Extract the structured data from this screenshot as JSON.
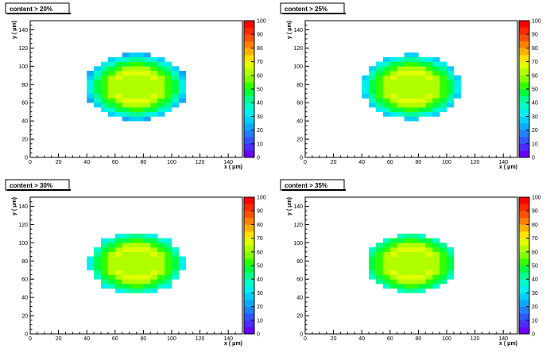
{
  "chart_data": [
    {
      "type": "heatmap",
      "title": "content > 20%",
      "xlabel": "x ( μm)",
      "ylabel": "y ( μm)",
      "xlim": [
        0,
        150
      ],
      "ylim": [
        0,
        150
      ],
      "x_ticks": [
        "0",
        "20",
        "40",
        "60",
        "80",
        "100",
        "120",
        "140"
      ],
      "y_ticks": [
        "0",
        "20",
        "40",
        "60",
        "80",
        "100",
        "120",
        "140"
      ],
      "z_range": [
        0,
        100
      ],
      "colorbar_ticks": [
        "0",
        "10",
        "20",
        "30",
        "40",
        "50",
        "60",
        "70",
        "80",
        "90",
        "100"
      ],
      "bin_size": 5,
      "ellipse": {
        "center_x": 75,
        "center_y": 77.5,
        "radius_x": 37.5,
        "radius_y": 37.5
      },
      "cutoff_percent": 20
    },
    {
      "type": "heatmap",
      "title": "content > 25%",
      "xlabel": "x ( μm)",
      "ylabel": "y ( μm)",
      "xlim": [
        0,
        150
      ],
      "ylim": [
        0,
        150
      ],
      "x_ticks": [
        "0",
        "20",
        "40",
        "60",
        "80",
        "100",
        "120",
        "140"
      ],
      "y_ticks": [
        "0",
        "20",
        "40",
        "60",
        "80",
        "100",
        "120",
        "140"
      ],
      "z_range": [
        0,
        100
      ],
      "colorbar_ticks": [
        "0",
        "10",
        "20",
        "30",
        "40",
        "50",
        "60",
        "70",
        "80",
        "90",
        "100"
      ],
      "bin_size": 5,
      "ellipse": {
        "center_x": 75,
        "center_y": 77.5,
        "radius_x": 37.5,
        "radius_y": 37.5
      },
      "cutoff_percent": 25
    },
    {
      "type": "heatmap",
      "title": "content > 30%",
      "xlabel": "x ( μm)",
      "ylabel": "y ( μm)",
      "xlim": [
        0,
        150
      ],
      "ylim": [
        0,
        150
      ],
      "x_ticks": [
        "0",
        "20",
        "40",
        "60",
        "80",
        "100",
        "120",
        "140"
      ],
      "y_ticks": [
        "0",
        "20",
        "40",
        "60",
        "80",
        "100",
        "120",
        "140"
      ],
      "z_range": [
        0,
        100
      ],
      "colorbar_ticks": [
        "0",
        "10",
        "20",
        "30",
        "40",
        "50",
        "60",
        "70",
        "80",
        "90",
        "100"
      ],
      "bin_size": 5,
      "ellipse": {
        "center_x": 75,
        "center_y": 77.5,
        "radius_x": 37.5,
        "radius_y": 37.5
      },
      "cutoff_percent": 30
    },
    {
      "type": "heatmap",
      "title": "content > 35%",
      "xlabel": "x ( μm)",
      "ylabel": "y ( μm)",
      "xlim": [
        0,
        150
      ],
      "ylim": [
        0,
        150
      ],
      "x_ticks": [
        "0",
        "20",
        "40",
        "60",
        "80",
        "100",
        "120",
        "140"
      ],
      "y_ticks": [
        "0",
        "20",
        "40",
        "60",
        "80",
        "100",
        "120",
        "140"
      ],
      "z_range": [
        0,
        100
      ],
      "colorbar_ticks": [
        "0",
        "10",
        "20",
        "30",
        "40",
        "50",
        "60",
        "70",
        "80",
        "90",
        "100"
      ],
      "bin_size": 5,
      "ellipse": {
        "center_x": 75,
        "center_y": 77.5,
        "radius_x": 37.5,
        "radius_y": 37.5
      },
      "cutoff_percent": 35
    }
  ]
}
